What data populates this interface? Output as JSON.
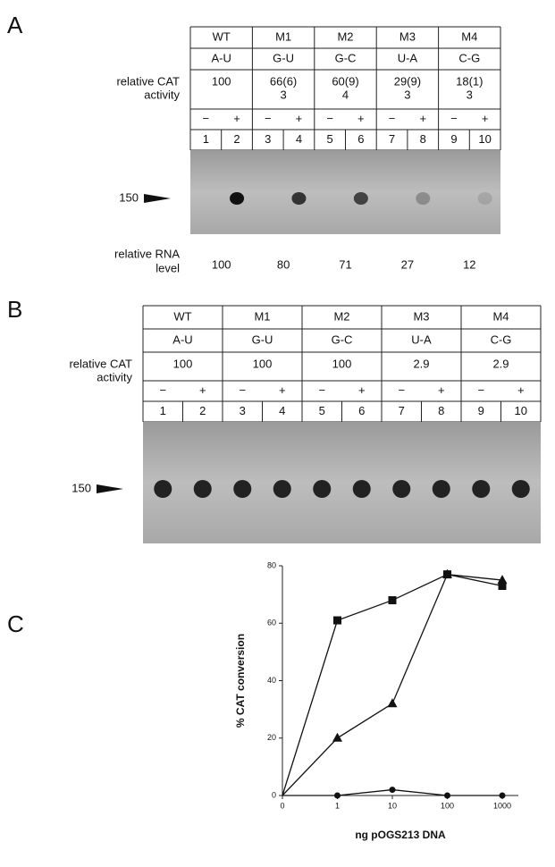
{
  "panel_a": {
    "label": "A",
    "columns": [
      "WT",
      "M1",
      "M2",
      "M3",
      "M4"
    ],
    "pairs": [
      "A-U",
      "G-U",
      "G-C",
      "U-A",
      "C-G"
    ],
    "cat_label": [
      "relative CAT",
      "activity"
    ],
    "cat": [
      [
        "100"
      ],
      [
        "66(6)",
        "3"
      ],
      [
        "60(9)",
        "4"
      ],
      [
        "29(9)",
        "3"
      ],
      [
        "18(1)",
        "3"
      ]
    ],
    "signs": [
      "−",
      "+",
      "−",
      "+",
      "−",
      "+",
      "−",
      "+",
      "−",
      "+"
    ],
    "lanes": [
      "1",
      "2",
      "3",
      "4",
      "5",
      "6",
      "7",
      "8",
      "9",
      "10"
    ],
    "marker": "150",
    "rna_label": [
      "relative RNA",
      "level"
    ],
    "rna_levels": [
      100,
      80,
      71,
      27,
      12
    ]
  },
  "panel_b": {
    "label": "B",
    "columns": [
      "WT",
      "M1",
      "M2",
      "M3",
      "M4"
    ],
    "pairs": [
      "A-U",
      "G-U",
      "G-C",
      "U-A",
      "C-G"
    ],
    "cat_label": [
      "relative CAT",
      "activity"
    ],
    "cat": [
      [
        "100"
      ],
      [
        "100"
      ],
      [
        "100"
      ],
      [
        "2.9"
      ],
      [
        "2.9"
      ]
    ],
    "signs": [
      "−",
      "+",
      "−",
      "+",
      "−",
      "+",
      "−",
      "+",
      "−",
      "+"
    ],
    "lanes": [
      "1",
      "2",
      "3",
      "4",
      "5",
      "6",
      "7",
      "8",
      "9",
      "10"
    ],
    "marker": "150"
  },
  "chart_data": {
    "type": "line",
    "label": "C",
    "xlabel": "ng pOGS213 DNA",
    "ylabel": "% CAT conversion",
    "categories": [
      "0",
      "1",
      "10",
      "100",
      "1000"
    ],
    "ylim": [
      0,
      80
    ],
    "yticks": [
      0,
      20,
      40,
      60,
      80
    ],
    "series": [
      {
        "marker": "square",
        "color": "#111111",
        "values": [
          0,
          61,
          68,
          77,
          73
        ]
      },
      {
        "marker": "triangle",
        "color": "#111111",
        "values": [
          0,
          20,
          32,
          77,
          75
        ]
      },
      {
        "marker": "circle",
        "color": "#111111",
        "values": [
          0,
          0,
          2,
          0,
          0
        ]
      }
    ]
  }
}
